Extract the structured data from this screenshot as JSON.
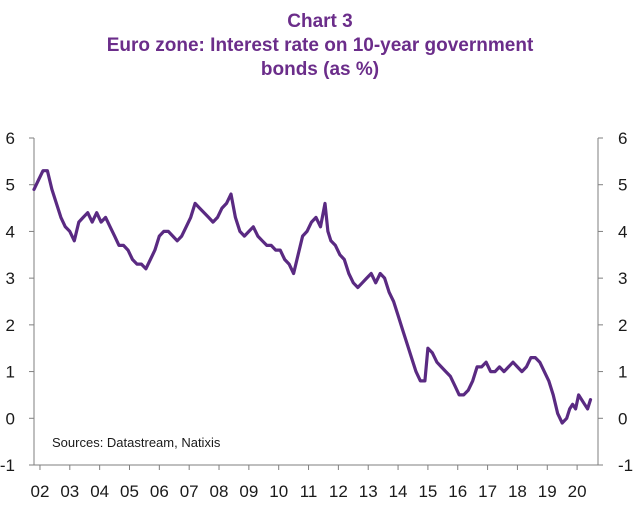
{
  "header": {
    "title": "Chart 3",
    "subtitle_line1": "Euro zone: Interest rate on 10-year government",
    "subtitle_line2": "bonds (as %)"
  },
  "source_note": "Sources: Datastream, Natixis",
  "colors": {
    "title": "#6b2d8a",
    "line": "#5a2a82",
    "axis": "#7f7f7f",
    "text": "#1a1a1a"
  },
  "chart_data": {
    "type": "line",
    "title": "Chart 3",
    "subtitle": "Euro zone: Interest rate on 10-year government bonds (as %)",
    "xlabel": "",
    "ylabel": "",
    "ylim": [
      -1,
      6
    ],
    "xlim": [
      2002.0,
      2020.9
    ],
    "y_ticks": [
      "-1",
      "0",
      "1",
      "2",
      "3",
      "4",
      "5",
      "6"
    ],
    "x_ticks": [
      {
        "label": "02",
        "x": 2002.2
      },
      {
        "label": "03",
        "x": 2003.2
      },
      {
        "label": "04",
        "x": 2004.2
      },
      {
        "label": "05",
        "x": 2005.2
      },
      {
        "label": "06",
        "x": 2006.2
      },
      {
        "label": "07",
        "x": 2007.2
      },
      {
        "label": "08",
        "x": 2008.2
      },
      {
        "label": "09",
        "x": 2009.2
      },
      {
        "label": "10",
        "x": 2010.2
      },
      {
        "label": "11",
        "x": 2011.2
      },
      {
        "label": "12",
        "x": 2012.2
      },
      {
        "label": "13",
        "x": 2013.2
      },
      {
        "label": "14",
        "x": 2014.2
      },
      {
        "label": "15",
        "x": 2015.2
      },
      {
        "label": "16",
        "x": 2016.2
      },
      {
        "label": "17",
        "x": 2017.2
      },
      {
        "label": "18",
        "x": 2018.2
      },
      {
        "label": "19",
        "x": 2019.2
      },
      {
        "label": "20",
        "x": 2020.2
      }
    ],
    "grid": false,
    "secondary_y_axis": true,
    "series": [
      {
        "x": [
          2002.0,
          2002.15,
          2002.3,
          2002.45,
          2002.6,
          2002.75,
          2002.9,
          2003.05,
          2003.2,
          2003.35,
          2003.5,
          2003.65,
          2003.8,
          2003.95,
          2004.1,
          2004.25,
          2004.4,
          2004.55,
          2004.7,
          2004.85,
          2005.0,
          2005.15,
          2005.3,
          2005.45,
          2005.6,
          2005.75,
          2005.9,
          2006.05,
          2006.2,
          2006.35,
          2006.5,
          2006.65,
          2006.8,
          2006.95,
          2007.1,
          2007.25,
          2007.4,
          2007.55,
          2007.7,
          2007.85,
          2008.0,
          2008.15,
          2008.3,
          2008.45,
          2008.6,
          2008.75,
          2008.9,
          2009.05,
          2009.2,
          2009.35,
          2009.5,
          2009.65,
          2009.8,
          2009.95,
          2010.1,
          2010.25,
          2010.4,
          2010.55,
          2010.7,
          2010.85,
          2011.0,
          2011.15,
          2011.3,
          2011.45,
          2011.6,
          2011.75,
          2011.85,
          2011.95,
          2012.1,
          2012.25,
          2012.4,
          2012.55,
          2012.7,
          2012.85,
          2013.0,
          2013.15,
          2013.3,
          2013.45,
          2013.6,
          2013.75,
          2013.9,
          2014.05,
          2014.2,
          2014.35,
          2014.5,
          2014.65,
          2014.8,
          2014.95,
          2015.1,
          2015.2,
          2015.35,
          2015.5,
          2015.65,
          2015.8,
          2015.95,
          2016.1,
          2016.25,
          2016.4,
          2016.55,
          2016.7,
          2016.85,
          2017.0,
          2017.15,
          2017.3,
          2017.45,
          2017.6,
          2017.75,
          2017.9,
          2018.05,
          2018.2,
          2018.35,
          2018.5,
          2018.65,
          2018.8,
          2018.95,
          2019.1,
          2019.25,
          2019.4,
          2019.55,
          2019.7,
          2019.85,
          2019.95,
          2020.05,
          2020.15,
          2020.25,
          2020.35,
          2020.45,
          2020.55,
          2020.65
        ],
        "y": [
          4.9,
          5.1,
          5.3,
          5.3,
          4.9,
          4.6,
          4.3,
          4.1,
          4.0,
          3.8,
          4.2,
          4.3,
          4.4,
          4.2,
          4.4,
          4.2,
          4.3,
          4.1,
          3.9,
          3.7,
          3.7,
          3.6,
          3.4,
          3.3,
          3.3,
          3.2,
          3.4,
          3.6,
          3.9,
          4.0,
          4.0,
          3.9,
          3.8,
          3.9,
          4.1,
          4.3,
          4.6,
          4.5,
          4.4,
          4.3,
          4.2,
          4.3,
          4.5,
          4.6,
          4.8,
          4.3,
          4.0,
          3.9,
          4.0,
          4.1,
          3.9,
          3.8,
          3.7,
          3.7,
          3.6,
          3.6,
          3.4,
          3.3,
          3.1,
          3.5,
          3.9,
          4.0,
          4.2,
          4.3,
          4.1,
          4.6,
          4.0,
          3.8,
          3.7,
          3.5,
          3.4,
          3.1,
          2.9,
          2.8,
          2.9,
          3.0,
          3.1,
          2.9,
          3.1,
          3.0,
          2.7,
          2.5,
          2.2,
          1.9,
          1.6,
          1.3,
          1.0,
          0.8,
          0.8,
          1.5,
          1.4,
          1.2,
          1.1,
          1.0,
          0.9,
          0.7,
          0.5,
          0.5,
          0.6,
          0.8,
          1.1,
          1.1,
          1.2,
          1.0,
          1.0,
          1.1,
          1.0,
          1.1,
          1.2,
          1.1,
          1.0,
          1.1,
          1.3,
          1.3,
          1.2,
          1.0,
          0.8,
          0.5,
          0.1,
          -0.1,
          0.0,
          0.2,
          0.3,
          0.2,
          0.5,
          0.4,
          0.3,
          0.2,
          0.4
        ]
      }
    ]
  }
}
